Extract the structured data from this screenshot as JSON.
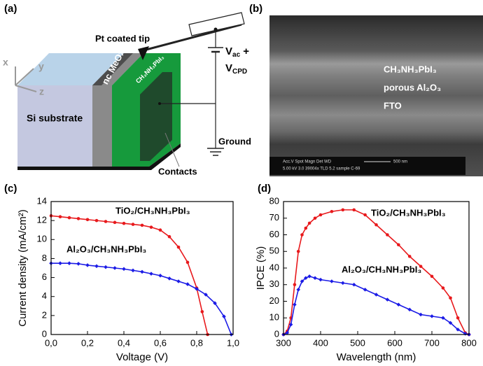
{
  "panel_labels": [
    "(a)",
    "(b)",
    "(c)",
    "(d)"
  ],
  "diagram": {
    "axes": [
      "x",
      "y",
      "z"
    ],
    "tip": "Pt coated tip",
    "vac": {
      "main": "V",
      "sub": "ac",
      "rest": " +"
    },
    "vcpd": {
      "main": "V",
      "sub": "CPD"
    },
    "ground": "Ground",
    "contacts": "Contacts",
    "substrate": "Si substrate",
    "meox": "nc MeOx",
    "perovskite": "CH₃NH₃PbI₃"
  },
  "sem_image": {
    "layers": [
      "CH₃NH₃PbI₃",
      "porous Al₂O₃",
      "FTO"
    ],
    "info_header": "Acc.V   Spot  Magn   Det  WD",
    "info_values": "5.00 kV  3.0  39004x  TLD  5.2   sample C-69",
    "scale": "500 nm"
  },
  "chart_data": [
    {
      "type": "line",
      "xlabel": "Voltage (V)",
      "ylabel": "Current density (mA/cm²)",
      "xlim": [
        0,
        1.0
      ],
      "ylim": [
        0,
        14
      ],
      "xticks": [
        {
          "value": 0,
          "label": "0,0"
        },
        {
          "value": 0.2,
          "label": "0,2"
        },
        {
          "value": 0.4,
          "label": "0,4"
        },
        {
          "value": 0.6,
          "label": "0,6"
        },
        {
          "value": 0.8,
          "label": "0,8"
        },
        {
          "value": 1.0,
          "label": "1,0"
        }
      ],
      "yticks": [
        0,
        2,
        4,
        6,
        8,
        10,
        12,
        14
      ],
      "series": [
        {
          "name": "TiO₂/CH₃NH₃PbI₃",
          "color": "#e8191c",
          "marker": "circle",
          "x": [
            0,
            0.05,
            0.1,
            0.15,
            0.2,
            0.25,
            0.3,
            0.35,
            0.4,
            0.45,
            0.5,
            0.55,
            0.6,
            0.65,
            0.7,
            0.75,
            0.8,
            0.83,
            0.86
          ],
          "values": [
            12.5,
            12.4,
            12.3,
            12.2,
            12.1,
            12.0,
            11.9,
            11.8,
            11.7,
            11.6,
            11.5,
            11.3,
            11.0,
            10.3,
            9.2,
            7.6,
            4.9,
            2.4,
            0
          ]
        },
        {
          "name": "Al₂O₃/CH₃NH₃PbI₃",
          "color": "#1b1be6",
          "marker": "diamond",
          "x": [
            0,
            0.05,
            0.1,
            0.15,
            0.2,
            0.25,
            0.3,
            0.35,
            0.4,
            0.45,
            0.5,
            0.55,
            0.6,
            0.65,
            0.7,
            0.75,
            0.8,
            0.85,
            0.9,
            0.95,
            0.99
          ],
          "values": [
            7.5,
            7.5,
            7.5,
            7.45,
            7.3,
            7.2,
            7.1,
            7.0,
            6.9,
            6.75,
            6.6,
            6.4,
            6.2,
            5.9,
            5.6,
            5.3,
            4.8,
            4.2,
            3.3,
            1.9,
            0
          ]
        }
      ]
    },
    {
      "type": "line",
      "xlabel": "Wavelength (nm)",
      "ylabel": "IPCE (%)",
      "xlim": [
        300,
        800
      ],
      "ylim": [
        0,
        80
      ],
      "xticks": [
        300,
        400,
        500,
        600,
        700,
        800
      ],
      "yticks": [
        0,
        10,
        20,
        30,
        40,
        50,
        60,
        70,
        80
      ],
      "x": [
        300,
        310,
        320,
        330,
        340,
        350,
        360,
        370,
        385,
        400,
        430,
        460,
        490,
        520,
        550,
        580,
        610,
        640,
        670,
        700,
        730,
        750,
        770,
        790,
        800
      ],
      "series": [
        {
          "name": "TiO₂/CH₃NH₃PbI₃",
          "color": "#e8191c",
          "marker": "circle",
          "values": [
            0,
            2,
            10,
            30,
            50,
            60,
            64,
            67,
            70,
            72,
            74,
            75,
            75,
            72,
            66,
            60,
            54,
            47,
            41,
            35,
            28,
            22,
            10,
            1,
            0
          ]
        },
        {
          "name": "Al₂O₃/CH₃NH₃PbI₃",
          "color": "#1b1be6",
          "marker": "diamond",
          "values": [
            0,
            1,
            6,
            18,
            27,
            32,
            34,
            35,
            34,
            33,
            32,
            31,
            30,
            27,
            24,
            21,
            18,
            15,
            12,
            11,
            10,
            7,
            3,
            0.5,
            0
          ]
        }
      ]
    }
  ]
}
